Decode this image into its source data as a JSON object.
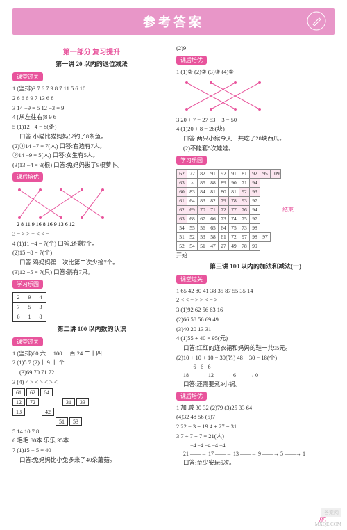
{
  "header": {
    "title": "参考答案"
  },
  "left": {
    "part_title": "第一部分 复习提升",
    "lec1_title": "第一讲 20 以内的退位减法",
    "tag_class": "课堂过关",
    "l1_1": "1 (坚排)3 7 6 7 9 8 7 11 5 6 10",
    "l1_2": "2 6 6 6 9 7 13 6 8",
    "l1_3": "3 14 −9 = 5  12 −3 = 9",
    "l1_4": "4 (从左往右)8 9 6",
    "l1_5": "5 (1)12 −4 = 8(条)",
    "l1_5a": "口答:小猫比猫妈妈少钓了8条鱼。",
    "l1_6": "(2)①14 −7 = 7(人)  口答:右边有7人。",
    "l1_7": "    ②14 −9 = 5(人)  口答:女生有5人。",
    "l1_8": "(3)13 −4 = 9(根)  口答:兔妈妈拔了9根萝卜。",
    "tag_after": "课后培优",
    "cross_top": [
      "2",
      "8",
      "11",
      "9",
      "16",
      "8",
      "16",
      "9",
      "13",
      "6",
      "12"
    ],
    "l3_1": "3 = > > = < < =",
    "l3_2": "4 (1)11 −4 = 7(个)  口答:还剩7个。",
    "l3_3": "  (2)15 −8 = 7(个)",
    "l3_4": "  口答:鸡妈妈第一次比第二次少捡7个。",
    "l3_5": "  (3)12 −5 = 7(只)  口答:鹅有7只。",
    "tag_play": "学习乐园",
    "grid3": [
      [
        "2",
        "9",
        "4"
      ],
      [
        "7",
        "5",
        "3"
      ],
      [
        "6",
        "1",
        "8"
      ]
    ],
    "lec2_title": "第二讲 100 以内数的认识",
    "l2_1": "1 (坚排)60 六十 100 一百 24 二十四",
    "l2_2": "2 (1)5 7 (2)十 9 十 个",
    "l2_3": "  (3)69 70 71 72",
    "l2_4": "3 (4) < > < > < > <",
    "l2_boxes_row1": [
      "",
      "61",
      "62",
      "64",
      ""
    ],
    "l2_boxes_row2": [
      "12",
      "72",
      "",
      "31",
      "33"
    ],
    "l2_boxes_row3": [
      "13",
      "",
      "42",
      "",
      ""
    ],
    "l2_boxes_row4": [
      "",
      "",
      "",
      "51",
      "53"
    ],
    "l2_5": "5 14 10 7 8",
    "l2_6": "6 毛毛:80本 乐乐:35本",
    "l2_7": "7 (1)15 − 5 = 40",
    "l2_8": "  口答:兔妈妈比小兔多来了40朵蘑菇。"
  },
  "right": {
    "cont_1": "(2)9",
    "tag_after": "课后培优",
    "r1": "1 (1)② (2)② (3)③ (4)①",
    "r3": "3 20 + 7 = 27   53 − 3 = 50",
    "r4": "4 (1)20 + 8 = 28(块)",
    "r4a": "  口答:两只小猴今天一共吃了28块西瓜。",
    "r4b": "  (2)不能套5次娃娃。",
    "tag_play": "学习乐园",
    "maze_rows": [
      [
        "62",
        "72",
        "82",
        "91",
        "92",
        "91",
        "81",
        "92",
        "95",
        "109"
      ],
      [
        "63",
        "×",
        "85",
        "88",
        "89",
        "90",
        "71",
        "94",
        "",
        ""
      ],
      [
        "60",
        "83",
        "84",
        "81",
        "80",
        "81",
        "92",
        "93",
        "",
        ""
      ],
      [
        "61",
        "64",
        "83",
        "82",
        "79",
        "78",
        "93",
        "97",
        "",
        ""
      ],
      [
        "62",
        "69",
        "70",
        "71",
        "72",
        "77",
        "76",
        "94",
        "",
        ""
      ],
      [
        "63",
        "68",
        "67",
        "66",
        "73",
        "74",
        "75",
        "97",
        "",
        ""
      ],
      [
        "54",
        "55",
        "56",
        "65",
        "64",
        "75",
        "73",
        "98",
        "",
        ""
      ],
      [
        "51",
        "52",
        "53",
        "58",
        "61",
        "72",
        "97",
        "98",
        "97",
        ""
      ],
      [
        "52",
        "54",
        "51",
        "47",
        "27",
        "49",
        "78",
        "99",
        ""
      ]
    ],
    "maze_end": "结束",
    "maze_start": "开始",
    "lec3_title": "第三讲 100 以内的加法和减法(一)",
    "tag_class": "课堂过关",
    "c1": "1 65 42 80 41 38 35 87 55 35 14",
    "c2": "2 < < = > > < = >",
    "c3": "3 (1)92 62 56 63 16",
    "c3a": "  (2)66 58 56 69 49",
    "c3b": "  (3)40 20 13 31",
    "c4": "4 (1)55 + 40 = 95(元)",
    "c4a": "  口答:红红的连衣裙和妈妈的鞋一共95元。",
    "c4b": "  (2)10 + 10 + 10 = 30(名)  48 − 30 = 18(个)",
    "c4c": "         −6     −6     −6",
    "c4d": "  18 ——→ 12 ——→ 6 ——→ 0",
    "c4e": "  口答:还需要煮3小锅。",
    "tag_after2": "课后培优",
    "d1": "1 加 减 30 32 (2)79 (3)25 33 64",
    "d1a": "  (4)32 48 56 (5)7",
    "d2": "2 22 − 3 = 19  4 + 27 = 31",
    "d3": "3 7 + 7 + 7 = 21(人)",
    "d3a": "       −4     −4     −4     −4     −4",
    "d3b": "  21 ——→ 17 ——→ 13 ——→ 9 ——→ 5 ——→ 1",
    "d3c": "  口答:至少安玩6次。"
  },
  "footer": {
    "page": "85",
    "wm1": "MXQE.COM",
    "wm2": "答案网"
  }
}
